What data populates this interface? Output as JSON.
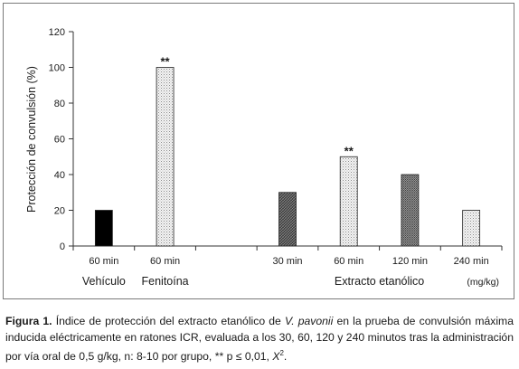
{
  "chart_data": {
    "type": "bar",
    "ylabel": "Protección de convulsión (%)",
    "ylim": [
      0,
      120
    ],
    "yticks": [
      0,
      20,
      40,
      60,
      80,
      100,
      120
    ],
    "unit_label": "(mg/kg)",
    "bars": [
      {
        "tick_label": "60 min",
        "value": 20,
        "fill": "solid-black",
        "significance": ""
      },
      {
        "tick_label": "60 min",
        "value": 100,
        "fill": "light-dotted",
        "significance": "**"
      },
      {
        "tick_label": "",
        "value": null,
        "fill": "none",
        "significance": ""
      },
      {
        "tick_label": "30 min",
        "value": 30,
        "fill": "dark-crosshatch",
        "significance": ""
      },
      {
        "tick_label": "60 min",
        "value": 50,
        "fill": "light-dotted",
        "significance": "**"
      },
      {
        "tick_label": "120 min",
        "value": 40,
        "fill": "medium-dotted",
        "significance": ""
      },
      {
        "tick_label": "240 min",
        "value": 20,
        "fill": "light-dotted",
        "significance": ""
      }
    ],
    "groups": [
      {
        "label": "Vehículo",
        "bars": [
          0
        ]
      },
      {
        "label": "Fenitoína",
        "bars": [
          1
        ]
      },
      {
        "label": "Extracto etanólico",
        "bars": [
          3,
          4,
          5,
          6
        ]
      }
    ],
    "grid": false,
    "legend": "none"
  },
  "caption": {
    "label": "Figura 1.",
    "text_before_species": " Índice de protección del extracto etanólico de ",
    "species": "V. pavonii",
    "text_after_species": " en la prueba de convulsión máxima inducida eléctricamente en ratones ICR, evaluada a los 30, 60, 120 y 240 minutos tras la administración por vía oral de 0,5 g/kg, n: 8-10 por grupo, ** p ≤ 0,01, ",
    "chi": "X",
    "chi_superscript": "2",
    "ending": "."
  }
}
